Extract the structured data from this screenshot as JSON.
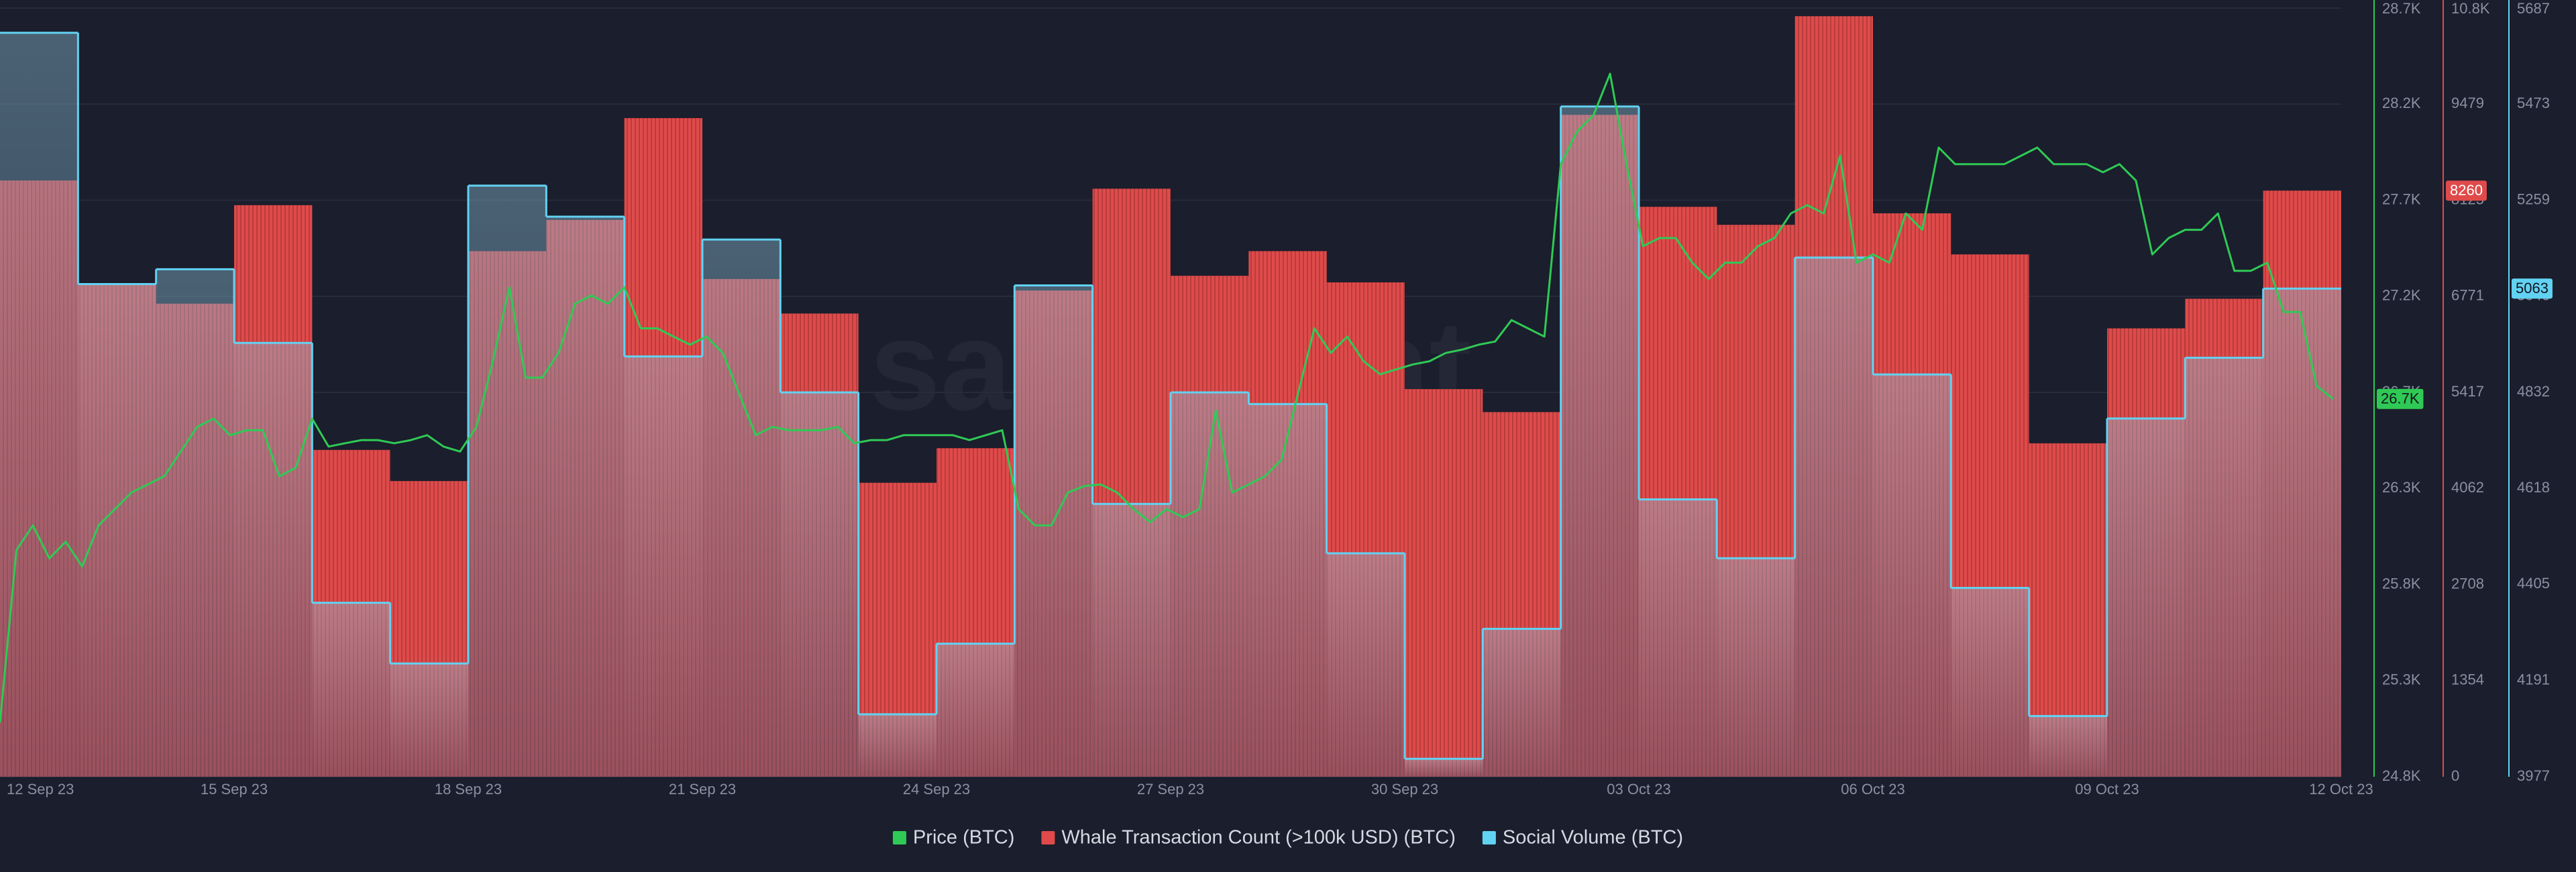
{
  "chart_data": {
    "type": "combo",
    "watermark": "santiment",
    "xticks": [
      "12 Sep 23",
      "15 Sep 23",
      "18 Sep 23",
      "21 Sep 23",
      "24 Sep 23",
      "27 Sep 23",
      "30 Sep 23",
      "03 Oct 23",
      "06 Oct 23",
      "09 Oct 23",
      "12 Oct 23"
    ],
    "ylim": [
      24800,
      28700
    ],
    "yticks": [
      {
        "value": 24800,
        "label": "24.8K"
      },
      {
        "value": 25287.5,
        "label": "25.3K"
      },
      {
        "value": 25775,
        "label": "25.8K"
      },
      {
        "value": 26262.5,
        "label": "26.3K"
      },
      {
        "value": 26750,
        "label": "26.7K"
      },
      {
        "value": 27237.5,
        "label": "27.2K"
      },
      {
        "value": 27725,
        "label": "27.7K"
      },
      {
        "value": 28212.5,
        "label": "28.2K"
      },
      {
        "value": 28700,
        "label": "28.7K"
      }
    ],
    "y2lim": [
      0,
      10833
    ],
    "y2ticks": [
      0,
      1354,
      2708,
      4062,
      5417,
      6771,
      8125,
      9479,
      {
        "value": 10833,
        "label": "10.8K"
      }
    ],
    "y3lim": [
      3977,
      5687
    ],
    "y3ticks": [
      3977,
      4191,
      4405,
      4618,
      4832,
      5046,
      5259,
      5473,
      5687
    ],
    "grid": true,
    "legend": "bottom",
    "series": [
      {
        "name": "Whale Transaction Count (>100k USD) (BTC)",
        "type": "bar",
        "axis": "y2",
        "color": "#e04a4a",
        "last_label": "8260",
        "values": [
          8403,
          6944,
          6667,
          8055,
          4606,
          4167,
          7407,
          7847,
          9282,
          7014,
          6528,
          4143,
          4630,
          6852,
          8287,
          7060,
          7407,
          6967,
          5463,
          5139,
          9328,
          8032,
          7778,
          10718,
          7940,
          7361,
          4699,
          6319,
          6736,
          8260
        ]
      },
      {
        "name": "Social Volume (BTC)",
        "type": "step",
        "axis": "y3",
        "color": "#62d2f2",
        "last_label": "5063",
        "values": [
          5632,
          5073,
          5106,
          4942,
          4364,
          4229,
          5292,
          5223,
          4912,
          5172,
          4832,
          4116,
          4273,
          5070,
          4584,
          4832,
          4806,
          4474,
          4017,
          4306,
          5468,
          4594,
          4463,
          5132,
          4872,
          4397,
          4112,
          4774,
          4909,
          5063
        ]
      },
      {
        "name": "Price (BTC)",
        "type": "line",
        "axis": "y",
        "color": "#2fca55",
        "last_label": "26.7K",
        "values": [
          25075,
          25950,
          26075,
          25908,
          25992,
          25867,
          26075,
          26158,
          26242,
          26283,
          26325,
          26450,
          26575,
          26617,
          26533,
          26558,
          26558,
          26325,
          26367,
          26617,
          26475,
          26492,
          26508,
          26508,
          26492,
          26508,
          26533,
          26475,
          26450,
          26575,
          26908,
          27283,
          26825,
          26825,
          26950,
          27200,
          27242,
          27200,
          27283,
          27075,
          27075,
          27033,
          26992,
          27033,
          26950,
          26742,
          26533,
          26575,
          26558,
          26558,
          26558,
          26575,
          26492,
          26508,
          26508,
          26533,
          26533,
          26533,
          26533,
          26508,
          26533,
          26558,
          26158,
          26075,
          26075,
          26242,
          26275,
          26283,
          26242,
          26158,
          26092,
          26158,
          26117,
          26158,
          26658,
          26242,
          26283,
          26325,
          26408,
          26742,
          27075,
          26950,
          27033,
          26908,
          26842,
          26867,
          26892,
          26908,
          26950,
          26967,
          26992,
          27008,
          27117,
          27075,
          27033,
          27908,
          28075,
          28158,
          28367,
          27908,
          27492,
          27533,
          27533,
          27408,
          27325,
          27408,
          27408,
          27492,
          27533,
          27658,
          27700,
          27658,
          27950,
          27408,
          27450,
          27408,
          27658,
          27575,
          27992,
          27908,
          27908,
          27908,
          27908,
          27950,
          27992,
          27908,
          27908,
          27908,
          27867,
          27908,
          27825,
          27450,
          27533,
          27575,
          27575,
          27658,
          27367,
          27367,
          27408,
          27158,
          27158,
          26783,
          26717
        ]
      }
    ]
  }
}
